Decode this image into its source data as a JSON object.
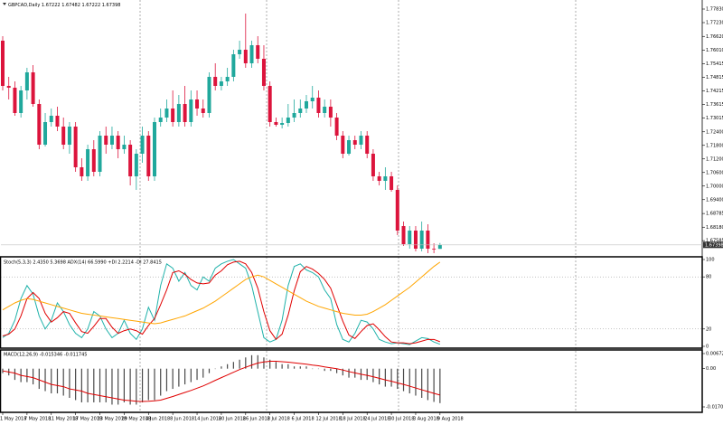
{
  "chart_data": [
    {
      "type": "candlestick",
      "title": "GBPCAD,Daily",
      "categories": [
        "1 May 2018",
        null,
        null,
        null,
        "7 May 2018",
        null,
        null,
        null,
        "11 May 2018",
        null,
        null,
        null,
        "17 May 2018",
        null,
        null,
        null,
        "23 May 2018",
        null,
        null,
        null,
        "29 May 2018",
        null,
        null,
        null,
        "4 Jun 2018",
        null,
        null,
        null,
        "8 Jun 2018",
        null,
        null,
        null,
        "14 Jun 2018",
        null,
        null,
        null,
        "20 Jun 2018",
        null,
        null,
        null,
        "26 Jun 2018",
        null,
        null,
        null,
        "2 Jul 2018",
        null,
        null,
        null,
        "6 Jul 2018",
        null,
        null,
        null,
        "12 Jul 2018",
        null,
        null,
        null,
        "18 Jul 2018",
        null,
        null,
        null,
        "24 Jul 2018",
        null,
        null,
        null,
        "30 Jul 2018",
        null,
        null,
        null,
        "3 Aug 2018",
        null,
        null,
        null,
        "9 Aug 2018"
      ],
      "open": [
        1.7643,
        1.7443,
        1.7435,
        1.7323,
        1.7423,
        1.7503,
        1.7363,
        1.7183,
        1.7283,
        1.7311,
        1.7263,
        1.7183,
        1.7263,
        1.7083,
        1.7043,
        1.7163,
        1.7063,
        1.7223,
        1.7183,
        1.7223,
        1.7163,
        1.7183,
        1.7043,
        1.7143,
        1.7223,
        1.7043,
        1.7283,
        1.7303,
        1.7343,
        1.7283,
        1.7363,
        1.7283,
        1.7383,
        1.7343,
        1.7323,
        1.7483,
        1.7443,
        1.7463,
        1.7483,
        1.7583,
        1.7603,
        1.7543,
        1.7623,
        1.7563,
        1.7443,
        1.7283,
        1.7271,
        1.7279,
        1.7303,
        1.7323,
        1.7343,
        1.7375,
        1.7391,
        1.7323,
        1.7351,
        1.7303,
        1.7223,
        1.7143,
        1.7203,
        1.7183,
        1.7223,
        1.7143,
        1.7043,
        1.7023,
        1.7043,
        1.6983,
        1.6823,
        1.6743,
        1.6803,
        1.6723,
        1.6803,
        1.6723,
        1.67222
      ],
      "high": [
        1.7663,
        1.7483,
        1.7463,
        1.7443,
        1.7523,
        1.7535,
        1.7383,
        1.7323,
        1.7343,
        1.7351,
        1.7303,
        1.7283,
        1.7283,
        1.7123,
        1.7183,
        1.7203,
        1.7243,
        1.7263,
        1.7263,
        1.7243,
        1.7223,
        1.7203,
        1.7163,
        1.7263,
        1.7243,
        1.7303,
        1.7343,
        1.7383,
        1.7423,
        1.7403,
        1.7443,
        1.7423,
        1.7423,
        1.7383,
        1.7503,
        1.7543,
        1.7483,
        1.7523,
        1.7603,
        1.7643,
        1.7763,
        1.7643,
        1.7663,
        1.7623,
        1.7463,
        1.7303,
        1.7303,
        1.7363,
        1.7383,
        1.7383,
        1.7403,
        1.7443,
        1.7423,
        1.7383,
        1.7383,
        1.7323,
        1.7243,
        1.7223,
        1.7223,
        1.7243,
        1.7243,
        1.7163,
        1.7063,
        1.7083,
        1.7063,
        1.7003,
        1.6843,
        1.6823,
        1.6823,
        1.6843,
        1.6831,
        1.6747,
        1.67482
      ],
      "low": [
        1.7423,
        1.7383,
        1.7311,
        1.7303,
        1.7383,
        1.7351,
        1.7163,
        1.7175,
        1.7263,
        1.7243,
        1.7163,
        1.7143,
        1.7063,
        1.7023,
        1.7023,
        1.7043,
        1.7043,
        1.7143,
        1.7163,
        1.7123,
        1.7143,
        1.7003,
        1.6983,
        1.7103,
        1.7023,
        1.7023,
        1.7263,
        1.7283,
        1.7263,
        1.7263,
        1.7263,
        1.7263,
        1.7311,
        1.7303,
        1.7303,
        1.7423,
        1.7423,
        1.7443,
        1.7463,
        1.7563,
        1.7523,
        1.7523,
        1.7543,
        1.7423,
        1.7263,
        1.7263,
        1.7255,
        1.7263,
        1.7283,
        1.7303,
        1.7323,
        1.7343,
        1.7303,
        1.7303,
        1.7263,
        1.7203,
        1.7123,
        1.7135,
        1.7163,
        1.7163,
        1.7123,
        1.7023,
        1.7003,
        1.6983,
        1.6975,
        1.6783,
        1.6735,
        1.6723,
        1.6711,
        1.6711,
        1.6703,
        1.6703,
        1.67222
      ],
      "close": [
        1.7443,
        1.7435,
        1.7323,
        1.7423,
        1.7503,
        1.7363,
        1.7183,
        1.7283,
        1.7311,
        1.7263,
        1.7183,
        1.7263,
        1.7083,
        1.7043,
        1.7163,
        1.7063,
        1.7223,
        1.7183,
        1.7223,
        1.7163,
        1.7183,
        1.7043,
        1.7143,
        1.7223,
        1.7043,
        1.7283,
        1.7303,
        1.7343,
        1.7283,
        1.7363,
        1.7283,
        1.7383,
        1.7343,
        1.7323,
        1.7483,
        1.7443,
        1.7463,
        1.7483,
        1.7583,
        1.7603,
        1.7543,
        1.7623,
        1.7563,
        1.7443,
        1.7283,
        1.7271,
        1.7279,
        1.7303,
        1.7323,
        1.7343,
        1.7375,
        1.7391,
        1.7323,
        1.7351,
        1.7303,
        1.7223,
        1.7143,
        1.7203,
        1.7183,
        1.7223,
        1.7143,
        1.7043,
        1.7023,
        1.7043,
        1.6983,
        1.6803,
        1.6743,
        1.6803,
        1.6723,
        1.6803,
        1.6723,
        1.6722,
        1.67398
      ],
      "up_color": "#20a89c",
      "down_color": "#dc143c",
      "ylim": [
        1.6691,
        1.7823
      ],
      "yticks": [
        {
          "value": 1.7783,
          "label": "1.77830"
        },
        {
          "value": 1.7723,
          "label": "1.77230"
        },
        {
          "value": 1.7662,
          "label": "1.76620"
        },
        {
          "value": 1.7601,
          "label": "1.76010"
        },
        1.75415,
        1.74815,
        1.74215,
        1.73615,
        1.73015,
        {
          "value": 1.724,
          "label": "1.72400"
        },
        {
          "value": 1.718,
          "label": "1.71800"
        },
        {
          "value": 1.712,
          "label": "1.71200"
        },
        {
          "value": 1.706,
          "label": "1.70600"
        },
        {
          "value": 1.7,
          "label": "1.70000"
        },
        {
          "value": 1.694,
          "label": "1.69400"
        },
        1.68785,
        {
          "value": 1.6818,
          "label": "1.68180"
        },
        1.67585
      ]
    },
    {
      "type": "line",
      "title": "Stoch(5,3,3) 2.4350 5.3698 ADX(14) 66.5990 +DI 2.2214 -DI 27.8415",
      "ylim": [
        0,
        100
      ],
      "yticks": [
        0,
        20,
        80,
        100
      ],
      "grid": true,
      "series": [
        {
          "color": "#20b2aa",
          "values": [
            10,
            15,
            30,
            55,
            70,
            60,
            35,
            20,
            30,
            50,
            40,
            25,
            15,
            10,
            20,
            40,
            35,
            20,
            10,
            15,
            30,
            15,
            8,
            20,
            45,
            30,
            70,
            95,
            90,
            75,
            85,
            70,
            65,
            80,
            75,
            90,
            95,
            98,
            100,
            95,
            90,
            70,
            40,
            10,
            5,
            8,
            30,
            70,
            92,
            95,
            88,
            85,
            80,
            65,
            55,
            25,
            8,
            5,
            15,
            30,
            28,
            20,
            8,
            5,
            3,
            4,
            3,
            2,
            6,
            10,
            9,
            5,
            2.435
          ]
        },
        {
          "color": "#e00000",
          "values": [
            12,
            14,
            20,
            35,
            55,
            62,
            55,
            38,
            28,
            33,
            40,
            38,
            27,
            17,
            15,
            23,
            32,
            32,
            22,
            15,
            18,
            20,
            18,
            14,
            24,
            32,
            48,
            65,
            85,
            87,
            83,
            77,
            73,
            72,
            73,
            82,
            87,
            94,
            97,
            98,
            95,
            85,
            67,
            40,
            18,
            8,
            14,
            36,
            64,
            86,
            92,
            89,
            84,
            77,
            67,
            48,
            29,
            13,
            9,
            17,
            24,
            26,
            19,
            11,
            5,
            4,
            4,
            3,
            4,
            6,
            8,
            8,
            5.37
          ]
        },
        {
          "color": "#ffa500",
          "values": [
            42,
            46,
            50,
            53,
            55,
            54,
            52,
            50,
            48,
            46,
            44,
            42,
            40,
            38,
            37,
            36,
            35,
            34,
            33,
            32,
            31,
            30,
            29,
            28,
            27,
            26,
            27,
            29,
            31,
            33,
            35,
            38,
            41,
            44,
            48,
            52,
            57,
            62,
            67,
            72,
            77,
            80,
            82,
            80,
            76,
            72,
            68,
            64,
            60,
            56,
            52,
            49,
            46,
            44,
            42,
            40,
            38,
            37,
            36,
            36,
            37,
            40,
            44,
            48,
            53,
            58,
            63,
            68,
            74,
            80,
            86,
            92,
            97
          ]
        }
      ]
    },
    {
      "type": "bar",
      "title": "MACD(12,26,9) -0.015346 -0.011745",
      "ylim": [
        -0.01904,
        0.00793
      ],
      "yticks": [
        0.006724,
        {
          "value": 0,
          "label": "0.00"
        },
        -0.017028
      ],
      "color": "#4a4a4a",
      "values": [
        -0.002,
        -0.003,
        -0.005,
        -0.006,
        -0.006,
        -0.007,
        -0.009,
        -0.01,
        -0.011,
        -0.011,
        -0.012,
        -0.013,
        -0.014,
        -0.015,
        -0.015,
        -0.015,
        -0.015,
        -0.015,
        -0.016,
        -0.016,
        -0.015,
        -0.016,
        -0.016,
        -0.015,
        -0.014,
        -0.014,
        -0.012,
        -0.01,
        -0.009,
        -0.008,
        -0.007,
        -0.006,
        -0.005,
        -0.004,
        -0.002,
        0,
        0.001,
        0.002,
        0.003,
        0.004,
        0.005,
        0.006,
        0.006,
        0.005,
        0.004,
        0.003,
        0.002,
        0.002,
        0.001,
        0.001,
        0.001,
        0,
        0,
        -0.001,
        -0.001,
        -0.002,
        -0.003,
        -0.004,
        -0.004,
        -0.005,
        -0.005,
        -0.006,
        -0.007,
        -0.008,
        -0.008,
        -0.009,
        -0.01,
        -0.011,
        -0.012,
        -0.013,
        -0.014,
        -0.0148,
        -0.01534
      ],
      "signal": {
        "color": "#e00000",
        "values": [
          -0.001,
          -0.0015,
          -0.002,
          -0.003,
          -0.0035,
          -0.004,
          -0.005,
          -0.006,
          -0.007,
          -0.0075,
          -0.008,
          -0.009,
          -0.0095,
          -0.01,
          -0.011,
          -0.0115,
          -0.012,
          -0.0125,
          -0.013,
          -0.0135,
          -0.014,
          -0.0142,
          -0.0145,
          -0.0146,
          -0.0145,
          -0.0143,
          -0.014,
          -0.0132,
          -0.0124,
          -0.0115,
          -0.0106,
          -0.0097,
          -0.0087,
          -0.0077,
          -0.0065,
          -0.0052,
          -0.004,
          -0.0028,
          -0.0016,
          -0.0004,
          0.0006,
          0.0016,
          0.0025,
          0.003,
          0.0033,
          0.0033,
          0.0031,
          0.0029,
          0.0026,
          0.0023,
          0.002,
          0.0016,
          0.0013,
          0.0008,
          0.0004,
          0,
          -0.0006,
          -0.0013,
          -0.0019,
          -0.0025,
          -0.003,
          -0.0036,
          -0.0043,
          -0.005,
          -0.0056,
          -0.0063,
          -0.007,
          -0.0078,
          -0.0086,
          -0.0094,
          -0.0102,
          -0.011,
          -0.011745
        ]
      }
    }
  ]
}
